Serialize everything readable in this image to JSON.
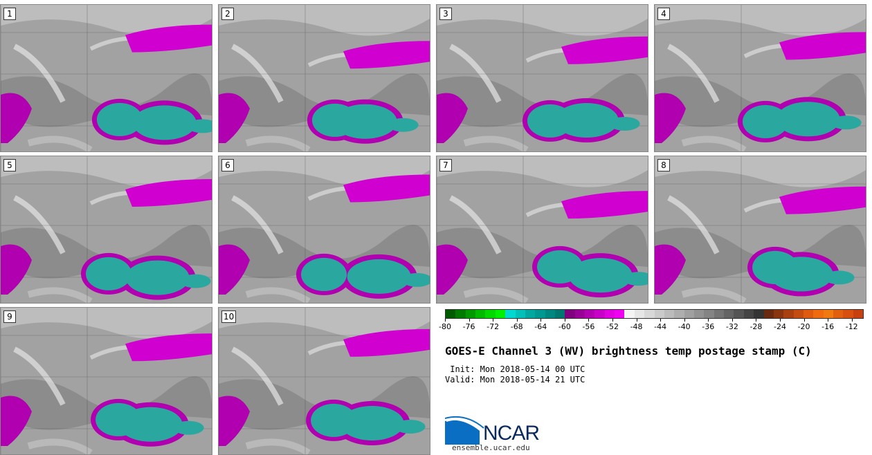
{
  "title": "GOES-E Channel 3 (WV) brightness temp postage stamp (C)",
  "init_label": "Init:",
  "init_value": "Mon 2018-05-14 00 UTC",
  "valid_label": "Valid:",
  "valid_value": "Mon 2018-05-14 21 UTC",
  "logo_text": "NCAR",
  "url": "ensemble.ucar.edu",
  "members": [
    "1",
    "2",
    "3",
    "4",
    "5",
    "6",
    "7",
    "8",
    "9",
    "10"
  ],
  "colorbar": {
    "tick_labels": [
      "-80",
      "-76",
      "-72",
      "-68",
      "-64",
      "-60",
      "-56",
      "-52",
      "-48",
      "-44",
      "-40",
      "-36",
      "-32",
      "-28",
      "-24",
      "-20",
      "-16",
      "-12"
    ],
    "min": -80,
    "max": -10,
    "colors": [
      "#005a00",
      "#007a00",
      "#009a00",
      "#00ba00",
      "#00d800",
      "#00f000",
      "#00d8d0",
      "#00c0b8",
      "#00a8a0",
      "#009890",
      "#008880",
      "#007870",
      "#800080",
      "#980098",
      "#b000b0",
      "#c800c8",
      "#e000e0",
      "#f000f0",
      "#f4f4f4",
      "#e6e6e6",
      "#d8d8d8",
      "#cacaca",
      "#bcbcbc",
      "#aeaeae",
      "#a0a0a0",
      "#929292",
      "#848484",
      "#747474",
      "#646464",
      "#545454",
      "#444444",
      "#343434",
      "#6a2a10",
      "#8a3410",
      "#a84010",
      "#c44c10",
      "#de5a10",
      "#f06a10",
      "#f07a10",
      "#e06010",
      "#d85010",
      "#c84010"
    ]
  }
}
